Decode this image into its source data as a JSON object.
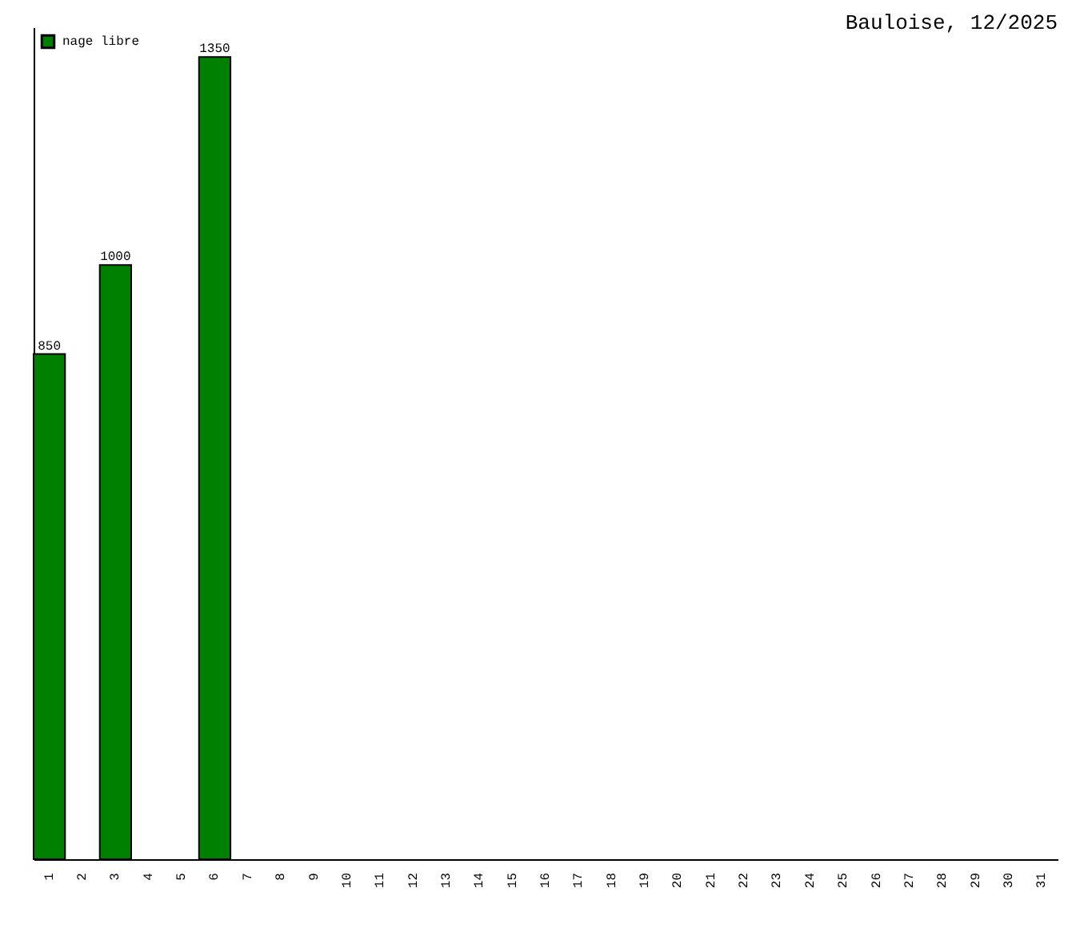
{
  "chart_data": {
    "type": "bar",
    "title": "Bauloise, 12/2025",
    "categories": [
      "1",
      "2",
      "3",
      "4",
      "5",
      "6",
      "7",
      "8",
      "9",
      "10",
      "11",
      "12",
      "13",
      "14",
      "15",
      "16",
      "17",
      "18",
      "19",
      "20",
      "21",
      "22",
      "23",
      "24",
      "25",
      "26",
      "27",
      "28",
      "29",
      "30",
      "31"
    ],
    "series": [
      {
        "name": "nage libre",
        "color": "#008000",
        "values": [
          850,
          null,
          1000,
          null,
          null,
          1350,
          null,
          null,
          null,
          null,
          null,
          null,
          null,
          null,
          null,
          null,
          null,
          null,
          null,
          null,
          null,
          null,
          null,
          null,
          null,
          null,
          null,
          null,
          null,
          null,
          null
        ]
      }
    ],
    "data_labels": true,
    "tick_labels": "x",
    "legend": "top left"
  }
}
